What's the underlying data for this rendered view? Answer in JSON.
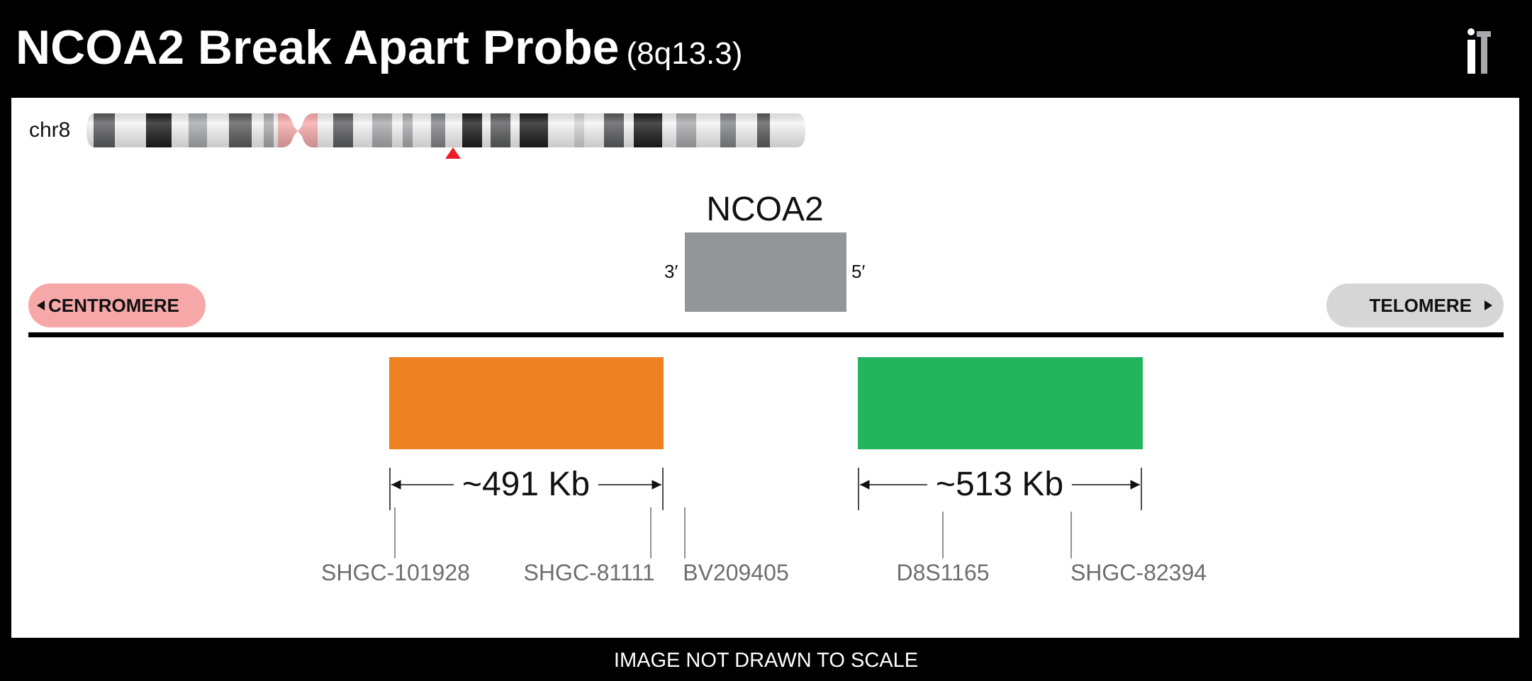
{
  "header": {
    "title": "NCOA2 Break Apart Probe",
    "subtitle": "(8q13.3)",
    "logo_icon": "tt-logo-icon"
  },
  "chromosome": {
    "label": "chr8",
    "centromere_color": "#f6a8a9",
    "locus_marker_color": "#ed1c24"
  },
  "gene": {
    "name": "NCOA2",
    "end_left": "3′",
    "end_right": "5′",
    "color": "#939598"
  },
  "orientation": {
    "centromere_label": "CENTROMERE",
    "telomere_label": "TELOMERE",
    "centromere_color": "#f6a8a9",
    "telomere_color": "#d6d6d6"
  },
  "probes": [
    {
      "color": "#ee8122",
      "size_label": "~491 Kb"
    },
    {
      "color": "#23b45e",
      "size_label": "~513 Kb"
    }
  ],
  "markers": [
    "SHGC-101928",
    "SHGC-81111",
    "BV209405",
    "D8S1165",
    "SHGC-82394"
  ],
  "footer": {
    "note": "IMAGE NOT DRAWN TO SCALE"
  }
}
